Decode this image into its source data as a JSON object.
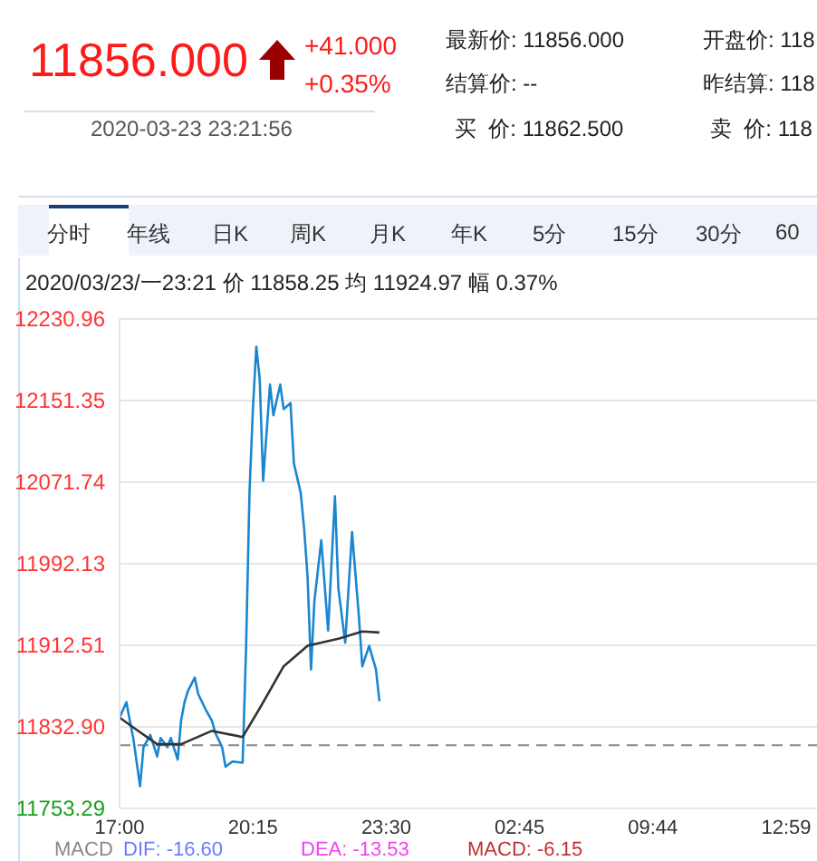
{
  "chart_data": {
    "type": "line",
    "annotations": [
      "11856.000",
      "+41.000",
      "+0.35%",
      "2020-03-23 23:21:56",
      "最新价: 11856.000",
      "开盘价: 118",
      "结算价: --",
      "昨结算: 118",
      "买  价: 11862.500",
      "卖  价: 118",
      "分时",
      "年线",
      "日K",
      "周K",
      "月K",
      "年K",
      "5分",
      "15分",
      "30分",
      "60",
      "2020/03/23/一23:21 价 11858.25 均 11924.97 幅 0.37%",
      "MACD",
      "DIF: -16.60",
      "DEA: -13.53",
      "MACD: -6.15"
    ],
    "categories": [
      "17:00",
      null,
      null,
      null,
      null,
      null,
      null,
      null,
      null,
      null,
      null,
      null,
      null,
      null,
      null,
      null,
      null,
      null,
      null,
      null,
      null,
      null,
      null,
      null,
      null,
      null,
      null,
      null,
      null,
      null,
      null,
      null,
      null,
      null,
      null,
      null,
      null,
      null,
      null,
      "20:15",
      null,
      null,
      null,
      null,
      null,
      null,
      null,
      null,
      null,
      null,
      null,
      null,
      null,
      null,
      null,
      null,
      null,
      null,
      null,
      null,
      null,
      null,
      null,
      null,
      null,
      null,
      null,
      null,
      null,
      null,
      null,
      null,
      null,
      null,
      null,
      null,
      null,
      null,
      "23:30",
      null,
      null,
      null,
      null,
      null,
      null,
      null,
      null,
      null,
      null,
      null,
      null,
      null,
      null,
      null,
      null,
      null,
      null,
      null,
      null,
      null,
      null,
      null,
      null,
      null,
      null,
      null,
      null,
      null,
      null,
      null,
      null,
      null,
      null,
      null,
      null,
      null,
      null,
      "02:45",
      null,
      null,
      null,
      null,
      null,
      null,
      null,
      null,
      null,
      null,
      null,
      null,
      null,
      null,
      null,
      null,
      null,
      null,
      null,
      null,
      null,
      null,
      null,
      null,
      null,
      null,
      null,
      null,
      null,
      null,
      null,
      null,
      null,
      null,
      null,
      null,
      null,
      null,
      "09:44",
      null,
      null,
      null,
      null,
      null,
      null,
      null,
      null,
      null,
      null,
      null,
      null,
      null,
      null,
      null,
      null,
      null,
      null,
      null,
      null,
      null,
      null,
      null,
      null,
      null,
      null,
      null,
      null,
      null,
      null,
      null,
      null,
      null,
      null,
      null,
      null,
      null,
      null,
      "12:59",
      null,
      null,
      null,
      null,
      null,
      null,
      null,
      null,
      null
    ],
    "series": [
      {
        "color": "#1a86d0",
        "values": [
          11842,
          null,
          11857,
          11839,
          11822,
          null,
          11775,
          11813,
          null,
          11825,
          null,
          11804,
          11822,
          null,
          11813,
          11822,
          null,
          11801,
          11839,
          11857,
          11868,
          null,
          11881,
          11865,
          null,
          11851,
          null,
          11839,
          11827,
          null,
          11813,
          11794,
          null,
          11799,
          null,
          null,
          11798,
          11909,
          12061,
          12143,
          12204,
          12172,
          12073,
          null,
          12167,
          12137,
          null,
          12167,
          12143,
          null,
          12149,
          12090,
          null,
          12061,
          12026,
          11979,
          11889,
          11956,
          null,
          12015,
          null,
          11927,
          null,
          12058,
          11968,
          null,
          11915,
          null,
          12023,
          null,
          11941,
          11892,
          null,
          11912,
          null,
          11889,
          11858,
          null,
          null,
          null,
          null,
          null,
          null,
          null,
          null,
          null,
          null,
          null,
          null,
          null,
          null,
          null,
          null,
          null,
          null,
          null,
          null,
          null,
          null,
          null,
          null,
          null,
          null,
          null,
          null,
          null,
          null,
          null,
          null,
          null,
          null,
          null,
          null,
          null,
          null,
          null,
          null,
          null,
          null,
          null,
          null,
          null,
          null,
          null,
          null,
          null,
          null,
          null,
          null,
          null,
          null,
          null,
          null,
          null,
          null,
          null,
          null,
          null,
          null,
          null,
          null,
          null,
          null,
          null,
          null,
          null,
          null,
          null,
          null,
          null,
          null,
          null,
          null,
          null,
          null,
          null,
          null,
          null,
          null,
          null,
          null,
          null,
          null,
          null,
          null,
          null,
          null,
          null,
          null,
          null,
          null,
          null,
          null,
          null,
          null,
          null,
          null,
          null,
          null,
          null,
          null,
          null,
          null,
          null,
          null,
          null,
          null,
          null,
          null,
          null,
          null,
          null,
          null,
          null,
          null,
          null,
          null,
          null,
          null,
          null,
          null,
          null,
          null,
          null,
          null
        ]
      },
      {
        "color": "#333333",
        "values": [
          11842,
          null,
          null,
          null,
          null,
          11830,
          null,
          null,
          null,
          null,
          null,
          11816,
          null,
          null,
          null,
          null,
          null,
          null,
          11816,
          null,
          null,
          null,
          null,
          null,
          null,
          null,
          null,
          11829,
          null,
          null,
          null,
          null,
          null,
          null,
          null,
          null,
          11823,
          null,
          null,
          null,
          null,
          11851,
          null,
          null,
          null,
          null,
          null,
          null,
          11892,
          null,
          null,
          null,
          null,
          null,
          null,
          11912,
          null,
          null,
          null,
          null,
          null,
          null,
          null,
          null,
          11919,
          null,
          null,
          null,
          null,
          null,
          null,
          11926,
          null,
          null,
          null,
          null,
          11925,
          null,
          null,
          null,
          null,
          null,
          null,
          null,
          null,
          null,
          null,
          null,
          null,
          null,
          null,
          null,
          null,
          null,
          null,
          null,
          null,
          null,
          null,
          null,
          null,
          null,
          null,
          null,
          null,
          null,
          null,
          null,
          null,
          null,
          null,
          null,
          null,
          null,
          null,
          null,
          null,
          null,
          null,
          null,
          null,
          null,
          null,
          null,
          null,
          null,
          null,
          null,
          null,
          null,
          null,
          null,
          null,
          null,
          null,
          null,
          null,
          null,
          null,
          null,
          null,
          null,
          null,
          null,
          null,
          null,
          null,
          null,
          null,
          null,
          null,
          null,
          null,
          null,
          null,
          null,
          null,
          null,
          null,
          null,
          null,
          null,
          null,
          null,
          null,
          null,
          null,
          null,
          null,
          null,
          null,
          null,
          null,
          null,
          null,
          null,
          null,
          null,
          null,
          null,
          null,
          null,
          null,
          null,
          null,
          null,
          null,
          null,
          null,
          null,
          null,
          null,
          null,
          null,
          null,
          null,
          null,
          null,
          null,
          null,
          null,
          null,
          null,
          null,
          null
        ]
      }
    ],
    "ylim": [
      11753.29,
      12230.96
    ],
    "yticks": [
      11753.29,
      {
        "value": 11832.9,
        "label": "11832.90"
      },
      11912.51,
      11992.13,
      12071.74,
      12151.35,
      12230.96
    ],
    "ref_lines": [
      {
        "axis": "y",
        "value": 11815,
        "color": "#888888",
        "line_style": "dashed"
      }
    ],
    "grid": "y",
    "legend": false,
    "marker": "none",
    "line_style": "solid"
  }
}
